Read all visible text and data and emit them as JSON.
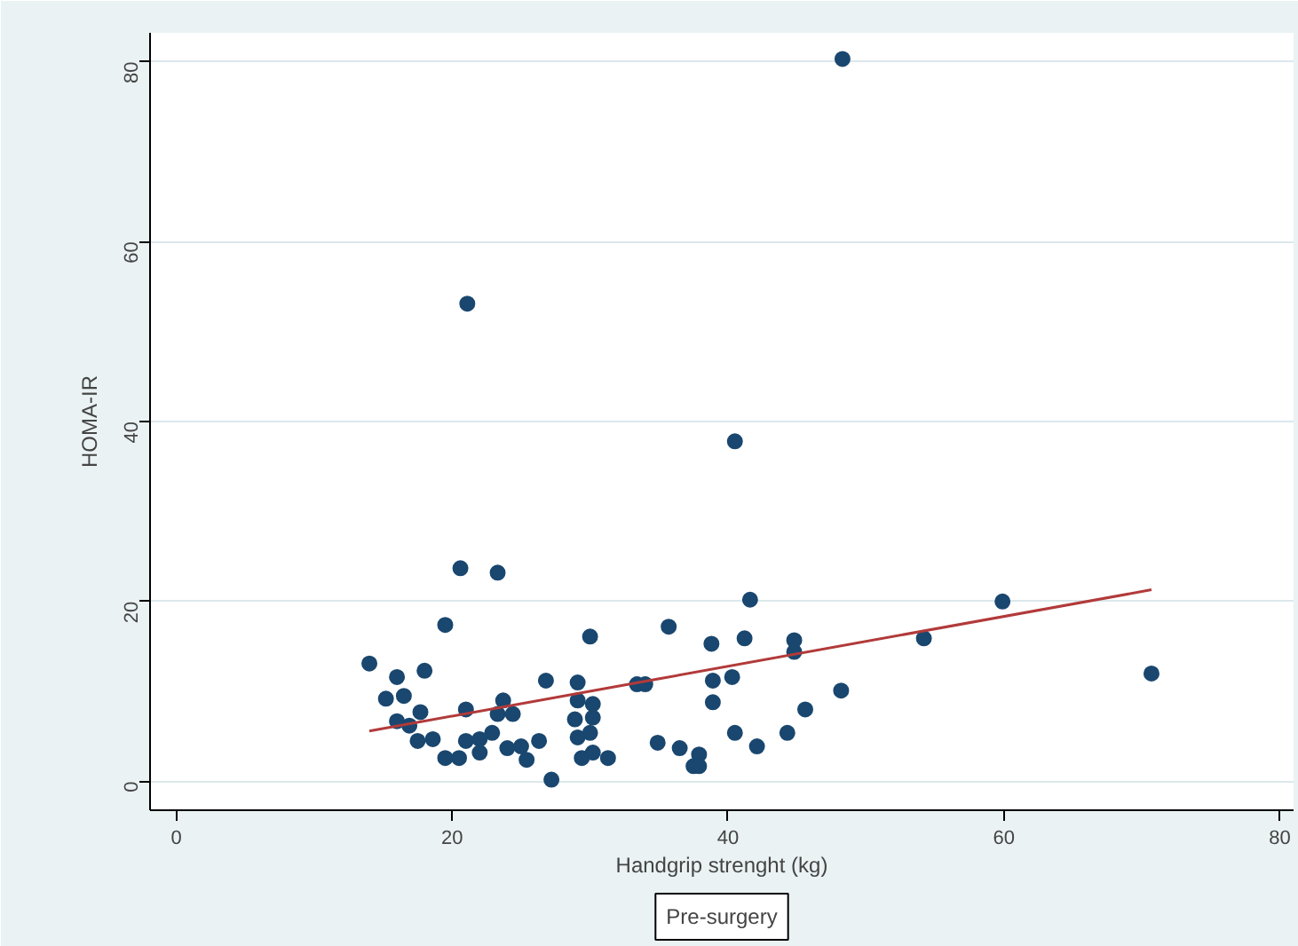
{
  "chart_data": {
    "type": "scatter",
    "xlabel": "Handgrip strenght (kg)",
    "ylabel": "HOMA-IR",
    "xlim": [
      -1.9,
      81
    ],
    "ylim": [
      -3.2,
      83.2
    ],
    "xticks": [
      0,
      20,
      40,
      60,
      80
    ],
    "yticks": [
      0,
      20,
      40,
      60,
      80
    ],
    "grid": "y",
    "annotations": [
      "Pre-surgery"
    ],
    "series": [
      {
        "marker": "circle",
        "color": "#1a476f",
        "x": [
          14.0,
          16.0,
          18.0,
          19.5,
          15.2,
          16.5,
          16.0,
          17.7,
          16.9,
          17.5,
          18.6,
          19.5,
          20.5,
          21.0,
          21.0,
          22.0,
          22.0,
          22.9,
          23.7,
          23.3,
          24.4,
          24.0,
          25.0,
          25.4,
          26.3,
          26.8,
          27.2,
          29.1,
          29.1,
          28.9,
          30.2,
          30.2,
          29.1,
          30.0,
          29.4,
          30.2,
          31.3,
          30.0,
          33.4,
          34.0,
          34.9,
          20.6,
          23.3,
          21.1,
          41.6,
          35.7,
          38.8,
          41.2,
          44.8,
          44.8,
          38.9,
          40.3,
          38.9,
          48.2,
          45.6,
          36.5,
          37.9,
          37.5,
          37.9,
          40.5,
          42.1,
          44.3,
          40.5,
          48.3,
          54.2,
          59.9,
          70.7
        ],
        "values": [
          13.1,
          11.6,
          12.3,
          17.4,
          9.2,
          9.5,
          6.7,
          7.7,
          6.2,
          4.5,
          4.7,
          2.6,
          2.6,
          8.0,
          4.5,
          4.7,
          3.2,
          5.4,
          9.0,
          7.5,
          7.5,
          3.7,
          3.9,
          2.4,
          4.5,
          11.2,
          0.2,
          11.0,
          9.0,
          6.9,
          8.6,
          7.1,
          4.9,
          5.4,
          2.6,
          3.2,
          2.6,
          16.1,
          10.8,
          10.8,
          4.3,
          23.7,
          23.2,
          53.1,
          20.2,
          17.2,
          15.3,
          15.9,
          15.7,
          14.4,
          11.2,
          11.6,
          8.8,
          10.1,
          8.0,
          3.7,
          3.0,
          1.7,
          1.7,
          5.4,
          3.9,
          5.4,
          37.8,
          80.3,
          15.9,
          20.0,
          12.0
        ]
      },
      {
        "type": "line",
        "color": "#b23a3a",
        "x": [
          14.0,
          70.7
        ],
        "values": [
          5.6,
          21.3
        ]
      }
    ]
  }
}
